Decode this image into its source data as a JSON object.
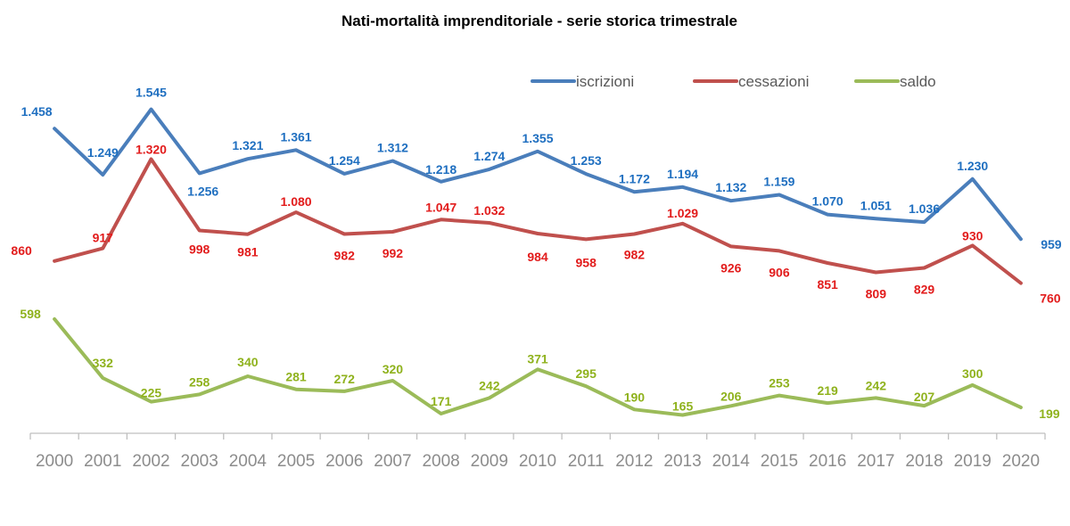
{
  "chart_data": {
    "type": "line",
    "title": "Nati-mortalità imprenditoriale - serie storica trimestrale",
    "xlabel": "",
    "ylabel": "",
    "categories": [
      "2000",
      "2001",
      "2002",
      "2003",
      "2004",
      "2005",
      "2006",
      "2007",
      "2008",
      "2009",
      "2010",
      "2011",
      "2012",
      "2013",
      "2014",
      "2015",
      "2016",
      "2017",
      "2018",
      "2019",
      "2020"
    ],
    "legend_position": "top-right",
    "grid": false,
    "y_axis_visible": false,
    "ylim": [
      0,
      1700
    ],
    "series": [
      {
        "name": "iscrizioni",
        "color": "#4a7ebb",
        "label_color": "#1f6fc0",
        "values": [
          1458,
          1249,
          1545,
          1256,
          1321,
          1361,
          1254,
          1312,
          1218,
          1274,
          1355,
          1253,
          1172,
          1194,
          1132,
          1159,
          1070,
          1051,
          1036,
          1230,
          959
        ],
        "labels": [
          "1.458",
          "1.249",
          "1.545",
          "1.256",
          "1.321",
          "1.361",
          "1.254",
          "1.312",
          "1.218",
          "1.274",
          "1.355",
          "1.253",
          "1.172",
          "1.194",
          "1.132",
          "1.159",
          "1.070",
          "1.051",
          "1.036",
          "1.230",
          "959"
        ]
      },
      {
        "name": "cessazioni",
        "color": "#c0504d",
        "label_color": "#e21c1c",
        "values": [
          860,
          917,
          1320,
          998,
          981,
          1080,
          982,
          992,
          1047,
          1032,
          984,
          958,
          982,
          1029,
          926,
          906,
          851,
          809,
          829,
          930,
          760
        ],
        "labels": [
          "860",
          "917",
          "1.320",
          "998",
          "981",
          "1.080",
          "982",
          "992",
          "1.047",
          "1.032",
          "984",
          "958",
          "982",
          "1.029",
          "926",
          "906",
          "851",
          "809",
          "829",
          "930",
          "760"
        ]
      },
      {
        "name": "saldo",
        "color": "#9bbb59",
        "label_color": "#8fb21d",
        "values": [
          598,
          332,
          225,
          258,
          340,
          281,
          272,
          320,
          171,
          242,
          371,
          295,
          190,
          165,
          206,
          253,
          219,
          242,
          207,
          300,
          199
        ],
        "labels": [
          "598",
          "332",
          "225",
          "258",
          "340",
          "281",
          "272",
          "320",
          "171",
          "242",
          "371",
          "295",
          "190",
          "165",
          "206",
          "253",
          "219",
          "242",
          "207",
          "300",
          "199"
        ]
      }
    ]
  }
}
